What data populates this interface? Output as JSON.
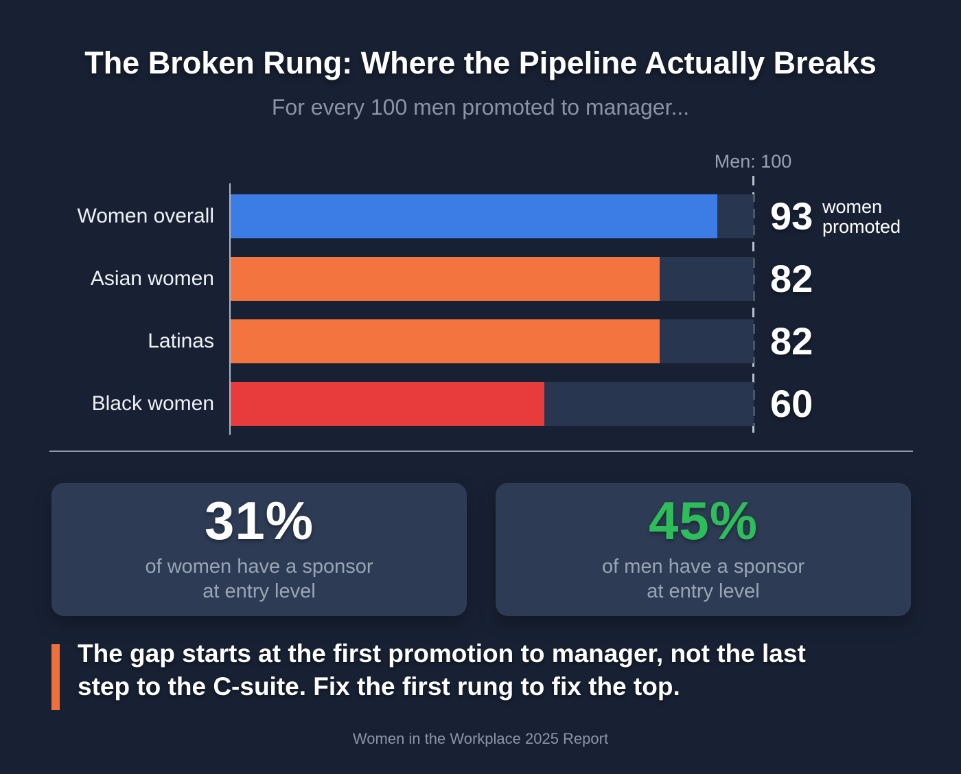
{
  "title": "The Broken Rung: Where the Pipeline Actually Breaks",
  "subtitle": "For every 100 men promoted to manager...",
  "chart_data": {
    "type": "bar",
    "orientation": "horizontal",
    "title": "For every 100 men promoted to manager...",
    "reference_label": "Men: 100",
    "reference_value": 100,
    "xlim": [
      0,
      100
    ],
    "grid": false,
    "categories": [
      "Women overall",
      "Asian women",
      "Latinas",
      "Black women"
    ],
    "values": [
      93,
      82,
      82,
      60
    ],
    "bar_colors": [
      "#3b7de4",
      "#f3743e",
      "#f3743e",
      "#e83c3c"
    ],
    "first_value_annotation": "women promoted"
  },
  "stat_cards": [
    {
      "value": "31%",
      "value_color": "#ffffff",
      "line1": "of women have a sponsor",
      "line2": "at entry level"
    },
    {
      "value": "45%",
      "value_color": "#2ebd5a",
      "line1": "of men have a sponsor",
      "line2": "at entry level"
    }
  ],
  "quote": {
    "line1": "The gap starts at the first promotion to manager, not the last",
    "line2": "step to the C-suite. Fix the first rung to fix the top."
  },
  "footer": "Women in the Workplace 2025 Report",
  "colors": {
    "background": "#182133",
    "track": "#293650",
    "card": "#2d3b54",
    "accent_orange": "#f0703c",
    "green": "#2ebd5a",
    "muted_text": "#8b95a6"
  }
}
